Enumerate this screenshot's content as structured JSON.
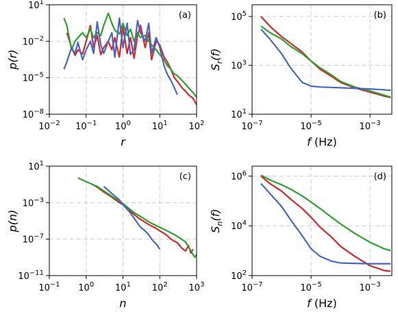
{
  "colors": {
    "red": "#d62728",
    "green": "#2ca02c",
    "blue": "#4565c6"
  },
  "chart_data": [
    {
      "panel": "(a)",
      "type": "line",
      "xlabel": "r",
      "ylabel": "p(r)",
      "xscale": "log",
      "yscale": "log",
      "xlim": [
        0.01,
        100
      ],
      "ylim": [
        1e-08,
        10
      ],
      "xticks": [
        "10^-2",
        "10^-1",
        "10^0",
        "10^1",
        "10^2"
      ],
      "yticks": [
        "10^-8",
        "10^-5",
        "10^-2",
        "10^1"
      ],
      "grid": true,
      "series": [
        {
          "color": "red",
          "x": [
            0.03,
            0.04,
            0.05,
            0.06,
            0.08,
            0.1,
            0.13,
            0.16,
            0.2,
            0.25,
            0.3,
            0.4,
            0.5,
            0.6,
            0.8,
            1,
            1.3,
            1.6,
            2,
            2.5,
            3,
            4,
            5,
            6,
            8,
            10,
            13,
            16,
            20,
            25,
            30,
            40,
            50,
            60,
            80,
            100
          ],
          "y": [
            0.05,
            0.003,
            0.0007,
            0.002,
            0.0009,
            0.01,
            0.2,
            0.003,
            0.03,
            0.0008,
            0.003,
            0.01,
            0.002,
            0.02,
            0.0005,
            0.15,
            0.001,
            0.02,
            0.0004,
            0.03,
            0.2,
            0.003,
            0.05,
            0.0003,
            0.01,
            0.005,
            0.0005,
            0.0002,
            5e-05,
            1e-05,
            5e-06,
            1.5e-06,
            8e-07,
            4e-07,
            2e-07,
            6e-08
          ]
        },
        {
          "color": "green",
          "x": [
            0.025,
            0.03,
            0.04,
            0.05,
            0.06,
            0.08,
            0.1,
            0.13,
            0.16,
            0.2,
            0.25,
            0.3,
            0.4,
            0.5,
            0.6,
            0.8,
            1,
            1.3,
            1.6,
            2,
            2.5,
            3,
            4,
            5,
            6,
            8,
            10,
            13,
            16,
            20,
            25,
            30,
            40,
            50,
            60,
            80,
            100
          ],
          "y": [
            0.8,
            0.2,
            0.002,
            0.01,
            0.02,
            0.05,
            0.02,
            0.1,
            0.02,
            0.05,
            0.03,
            0.2,
            2,
            0.3,
            0.08,
            0.04,
            0.3,
            0.03,
            0.1,
            0.01,
            0.05,
            0.02,
            0.03,
            0.01,
            0.005,
            0.002,
            0.0008,
            0.0003,
            0.0001,
            5e-05,
            2e-05,
            1.5e-05,
            6e-06,
            3e-06,
            1.5e-06,
            6e-07,
            2.5e-07
          ]
        },
        {
          "color": "blue",
          "x": [
            0.025,
            0.03,
            0.04,
            0.05,
            0.06,
            0.08,
            0.1,
            0.13,
            0.16,
            0.2,
            0.25,
            0.3,
            0.4,
            0.5,
            0.6,
            0.8,
            1,
            1.3,
            1.6,
            2,
            2.5,
            3,
            4,
            5,
            6,
            8,
            10,
            13,
            16,
            20,
            25,
            30
          ],
          "y": [
            5e-05,
            0.0002,
            0.003,
            0.001,
            0.008,
            0.0003,
            0.002,
            0.01,
            0.001,
            0.4,
            0.005,
            0.001,
            0.01,
            0.05,
            0.0005,
            0.8,
            0.003,
            0.3,
            0.0008,
            0.002,
            0.5,
            0.05,
            0.01,
            0.3,
            0.001,
            0.02,
            0.003,
            0.0001,
            2e-05,
            6e-06,
            1.5e-06,
            4e-07
          ]
        }
      ]
    },
    {
      "panel": "(b)",
      "type": "line",
      "xlabel": "f (Hz)",
      "ylabel": "S_r(f)",
      "xscale": "log",
      "yscale": "log",
      "xlim": [
        1e-07,
        0.0055
      ],
      "ylim": [
        10,
        300000
      ],
      "xticks": [
        "10^-7",
        "10^-5",
        "10^-3"
      ],
      "yticks": [
        "10^1",
        "10^3",
        "10^5"
      ],
      "grid": true,
      "series": [
        {
          "color": "red",
          "x": [
            2e-07,
            4e-07,
            1e-06,
            2e-06,
            5e-06,
            1e-05,
            2e-05,
            5e-05,
            0.0001,
            0.0003,
            0.001,
            0.003,
            0.005
          ],
          "y": [
            100000,
            40000,
            15000,
            8000,
            3500,
            1500,
            700,
            350,
            200,
            120,
            80,
            55,
            48
          ]
        },
        {
          "color": "green",
          "x": [
            2e-07,
            4e-07,
            1e-06,
            2e-06,
            5e-06,
            1e-05,
            2e-05,
            5e-05,
            0.0001,
            0.0003,
            0.001,
            0.003,
            0.005
          ],
          "y": [
            40000,
            22000,
            12000,
            6000,
            3000,
            1500,
            800,
            400,
            220,
            130,
            90,
            60,
            50
          ]
        },
        {
          "color": "blue",
          "x": [
            2e-07,
            4e-07,
            1e-06,
            2e-06,
            5e-06,
            1e-05,
            2e-05,
            5e-05,
            0.0001,
            0.0003,
            0.001,
            0.003,
            0.005
          ],
          "y": [
            30000,
            12000,
            3000,
            800,
            200,
            140,
            130,
            125,
            120,
            115,
            108,
            100,
            95
          ]
        }
      ]
    },
    {
      "panel": "(c)",
      "type": "line",
      "xlabel": "n",
      "ylabel": "p(n)",
      "xscale": "log",
      "yscale": "log",
      "xlim": [
        0.1,
        1000
      ],
      "ylim": [
        1e-11,
        10
      ],
      "xticks": [
        "10^-1",
        "10^0",
        "10^1",
        "10^2",
        "10^3"
      ],
      "yticks": [
        "10^-11",
        "10^-7",
        "10^-3",
        "10^1"
      ],
      "grid": true,
      "series": [
        {
          "color": "red",
          "x": [
            1.5,
            2,
            3,
            5,
            8,
            10,
            20,
            30,
            50,
            80,
            100,
            150,
            200,
            300,
            400,
            500,
            600,
            700,
            800
          ],
          "y": [
            0.1,
            0.05,
            0.015,
            0.004,
            0.001,
            0.0006,
            5e-05,
            1.5e-05,
            4e-06,
            1.5e-06,
            8e-07,
            3e-07,
            1e-07,
            4e-08,
            1e-08,
            5e-09,
            2e-08,
            3e-09,
            8e-09
          ]
        },
        {
          "color": "green",
          "x": [
            0.6,
            1,
            2,
            3,
            5,
            8,
            10,
            20,
            30,
            50,
            80,
            100,
            200,
            300,
            500,
            700,
            800,
            900,
            1000
          ],
          "y": [
            0.5,
            0.2,
            0.06,
            0.02,
            0.005,
            0.0015,
            0.0008,
            8e-05,
            3e-05,
            8e-06,
            3e-06,
            2e-06,
            5e-07,
            2e-07,
            5e-08,
            5e-09,
            2e-09,
            1e-09,
            2e-09
          ]
        },
        {
          "color": "blue",
          "x": [
            3,
            5,
            8,
            10,
            15,
            20,
            30,
            40,
            50,
            60,
            70,
            80,
            100
          ],
          "y": [
            0.06,
            0.01,
            0.002,
            0.0006,
            0.0001,
            2e-05,
            2e-06,
            8e-07,
            3e-07,
            1e-07,
            5e-08,
            3e-08,
            8e-09
          ]
        }
      ]
    },
    {
      "panel": "(d)",
      "type": "line",
      "xlabel": "f (Hz)",
      "ylabel": "S_n(f)",
      "xscale": "log",
      "yscale": "log",
      "xlim": [
        1e-07,
        0.0055
      ],
      "ylim": [
        100,
        2500000
      ],
      "xticks": [
        "10^-7",
        "10^-5",
        "10^-3"
      ],
      "yticks": [
        "10^2",
        "10^4",
        "10^6"
      ],
      "grid": true,
      "series": [
        {
          "color": "red",
          "x": [
            2e-07,
            4e-07,
            1e-06,
            2e-06,
            5e-06,
            1e-05,
            2e-05,
            5e-05,
            0.0001,
            0.0003,
            0.001,
            0.003,
            0.005
          ],
          "y": [
            1000000,
            500000,
            250000,
            120000,
            50000,
            22000,
            9000,
            3500,
            1500,
            600,
            250,
            160,
            150
          ]
        },
        {
          "color": "green",
          "x": [
            2e-07,
            4e-07,
            1e-06,
            2e-06,
            5e-06,
            1e-05,
            2e-05,
            5e-05,
            0.0001,
            0.0003,
            0.001,
            0.003,
            0.005
          ],
          "y": [
            1100000,
            700000,
            450000,
            300000,
            160000,
            90000,
            50000,
            22000,
            12000,
            5000,
            2200,
            1200,
            1000
          ]
        },
        {
          "color": "blue",
          "x": [
            2e-07,
            4e-07,
            1e-06,
            2e-06,
            5e-06,
            1e-05,
            2e-05,
            5e-05,
            0.0001,
            0.0003,
            0.001,
            0.003,
            0.005
          ],
          "y": [
            500000,
            200000,
            60000,
            18000,
            4000,
            1200,
            600,
            380,
            320,
            310,
            300,
            300,
            300
          ]
        }
      ]
    }
  ]
}
